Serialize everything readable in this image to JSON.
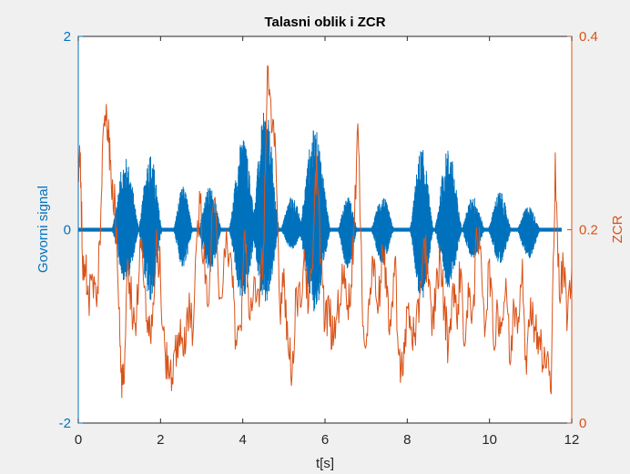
{
  "chart_data": {
    "type": "line",
    "title": "Talasni oblik i ZCR",
    "xlabel": "t[s]",
    "xlim": [
      0,
      12
    ],
    "xticks": [
      "0",
      "2",
      "4",
      "6",
      "8",
      "10",
      "12"
    ],
    "left_axis": {
      "label": "Govorni signal",
      "ylim": [
        -2,
        2
      ],
      "ticks": [
        "-2",
        "0",
        "2"
      ],
      "color": "#0072bd"
    },
    "right_axis": {
      "label": "ZCR",
      "ylim": [
        0,
        0.4
      ],
      "ticks": [
        "0",
        "0.2",
        "0.4"
      ],
      "color": "#d95319"
    },
    "grid": false,
    "series": [
      {
        "axis": "left",
        "color": "#0072bd",
        "noise_amplitude": 0.02,
        "bursts": [
          {
            "t": 1.15,
            "width": 0.35,
            "max": 0.75,
            "min": -0.55
          },
          {
            "t": 1.75,
            "width": 0.3,
            "max": 0.8,
            "min": -0.75
          },
          {
            "t": 2.55,
            "width": 0.25,
            "max": 0.45,
            "min": -0.4
          },
          {
            "t": 3.2,
            "width": 0.3,
            "max": 0.45,
            "min": -0.45
          },
          {
            "t": 4.0,
            "width": 0.35,
            "max": 0.95,
            "min": -0.75
          },
          {
            "t": 4.55,
            "width": 0.35,
            "max": 1.25,
            "min": -0.8
          },
          {
            "t": 5.2,
            "width": 0.3,
            "max": 0.35,
            "min": -0.2
          },
          {
            "t": 5.75,
            "width": 0.4,
            "max": 1.05,
            "min": -0.85
          },
          {
            "t": 6.55,
            "width": 0.25,
            "max": 0.35,
            "min": -0.4
          },
          {
            "t": 7.4,
            "width": 0.3,
            "max": 0.35,
            "min": -0.35
          },
          {
            "t": 8.35,
            "width": 0.3,
            "max": 0.85,
            "min": -0.75
          },
          {
            "t": 9.0,
            "width": 0.35,
            "max": 0.85,
            "min": -0.6
          },
          {
            "t": 9.6,
            "width": 0.3,
            "max": 0.35,
            "min": -0.3
          },
          {
            "t": 10.25,
            "width": 0.3,
            "max": 0.4,
            "min": -0.35
          },
          {
            "t": 10.95,
            "width": 0.3,
            "max": 0.25,
            "min": -0.3
          }
        ]
      },
      {
        "axis": "right",
        "color": "#d95319",
        "x": [
          0.0,
          0.05,
          0.1,
          0.18,
          0.25,
          0.35,
          0.45,
          0.55,
          0.62,
          0.68,
          0.75,
          0.8,
          0.9,
          1.0,
          1.05,
          1.1,
          1.2,
          1.3,
          1.4,
          1.5,
          1.6,
          1.7,
          1.8,
          1.9,
          2.0,
          2.1,
          2.2,
          2.3,
          2.4,
          2.45,
          2.55,
          2.65,
          2.8,
          2.95,
          3.05,
          3.15,
          3.3,
          3.45,
          3.6,
          3.75,
          3.85,
          3.95,
          4.05,
          4.15,
          4.3,
          4.4,
          4.5,
          4.6,
          4.7,
          4.8,
          4.9,
          5.0,
          5.1,
          5.2,
          5.3,
          5.4,
          5.5,
          5.6,
          5.7,
          5.8,
          5.9,
          6.0,
          6.1,
          6.2,
          6.3,
          6.4,
          6.5,
          6.6,
          6.7,
          6.8,
          6.9,
          7.0,
          7.1,
          7.2,
          7.3,
          7.4,
          7.5,
          7.6,
          7.7,
          7.8,
          7.9,
          8.0,
          8.1,
          8.2,
          8.3,
          8.4,
          8.5,
          8.6,
          8.7,
          8.8,
          8.9,
          9.0,
          9.1,
          9.2,
          9.3,
          9.4,
          9.5,
          9.6,
          9.7,
          9.8,
          9.9,
          10.0,
          10.1,
          10.2,
          10.3,
          10.4,
          10.5,
          10.6,
          10.7,
          10.8,
          10.9,
          11.0,
          11.1,
          11.2,
          11.3,
          11.4,
          11.5,
          11.6,
          11.7,
          11.8,
          11.9,
          12.0
        ],
        "values": [
          0.25,
          0.28,
          0.17,
          0.16,
          0.13,
          0.15,
          0.12,
          0.22,
          0.31,
          0.33,
          0.29,
          0.25,
          0.22,
          0.12,
          0.05,
          0.04,
          0.17,
          0.12,
          0.09,
          0.19,
          0.14,
          0.11,
          0.1,
          0.2,
          0.15,
          0.08,
          0.05,
          0.04,
          0.08,
          0.09,
          0.07,
          0.12,
          0.1,
          0.24,
          0.17,
          0.12,
          0.23,
          0.13,
          0.2,
          0.14,
          0.08,
          0.1,
          0.2,
          0.11,
          0.15,
          0.12,
          0.18,
          0.37,
          0.3,
          0.28,
          0.12,
          0.16,
          0.08,
          0.05,
          0.14,
          0.12,
          0.18,
          0.12,
          0.16,
          0.28,
          0.17,
          0.1,
          0.12,
          0.08,
          0.12,
          0.14,
          0.15,
          0.12,
          0.2,
          0.31,
          0.13,
          0.08,
          0.14,
          0.17,
          0.12,
          0.18,
          0.13,
          0.1,
          0.17,
          0.07,
          0.05,
          0.12,
          0.1,
          0.08,
          0.13,
          0.19,
          0.16,
          0.09,
          0.14,
          0.17,
          0.12,
          0.08,
          0.14,
          0.11,
          0.16,
          0.08,
          0.13,
          0.12,
          0.19,
          0.17,
          0.1,
          0.17,
          0.08,
          0.12,
          0.1,
          0.15,
          0.06,
          0.12,
          0.11,
          0.17,
          0.05,
          0.13,
          0.1,
          0.09,
          0.06,
          0.07,
          0.03,
          0.28,
          0.13,
          0.16,
          0.11,
          0.16
        ]
      }
    ]
  }
}
